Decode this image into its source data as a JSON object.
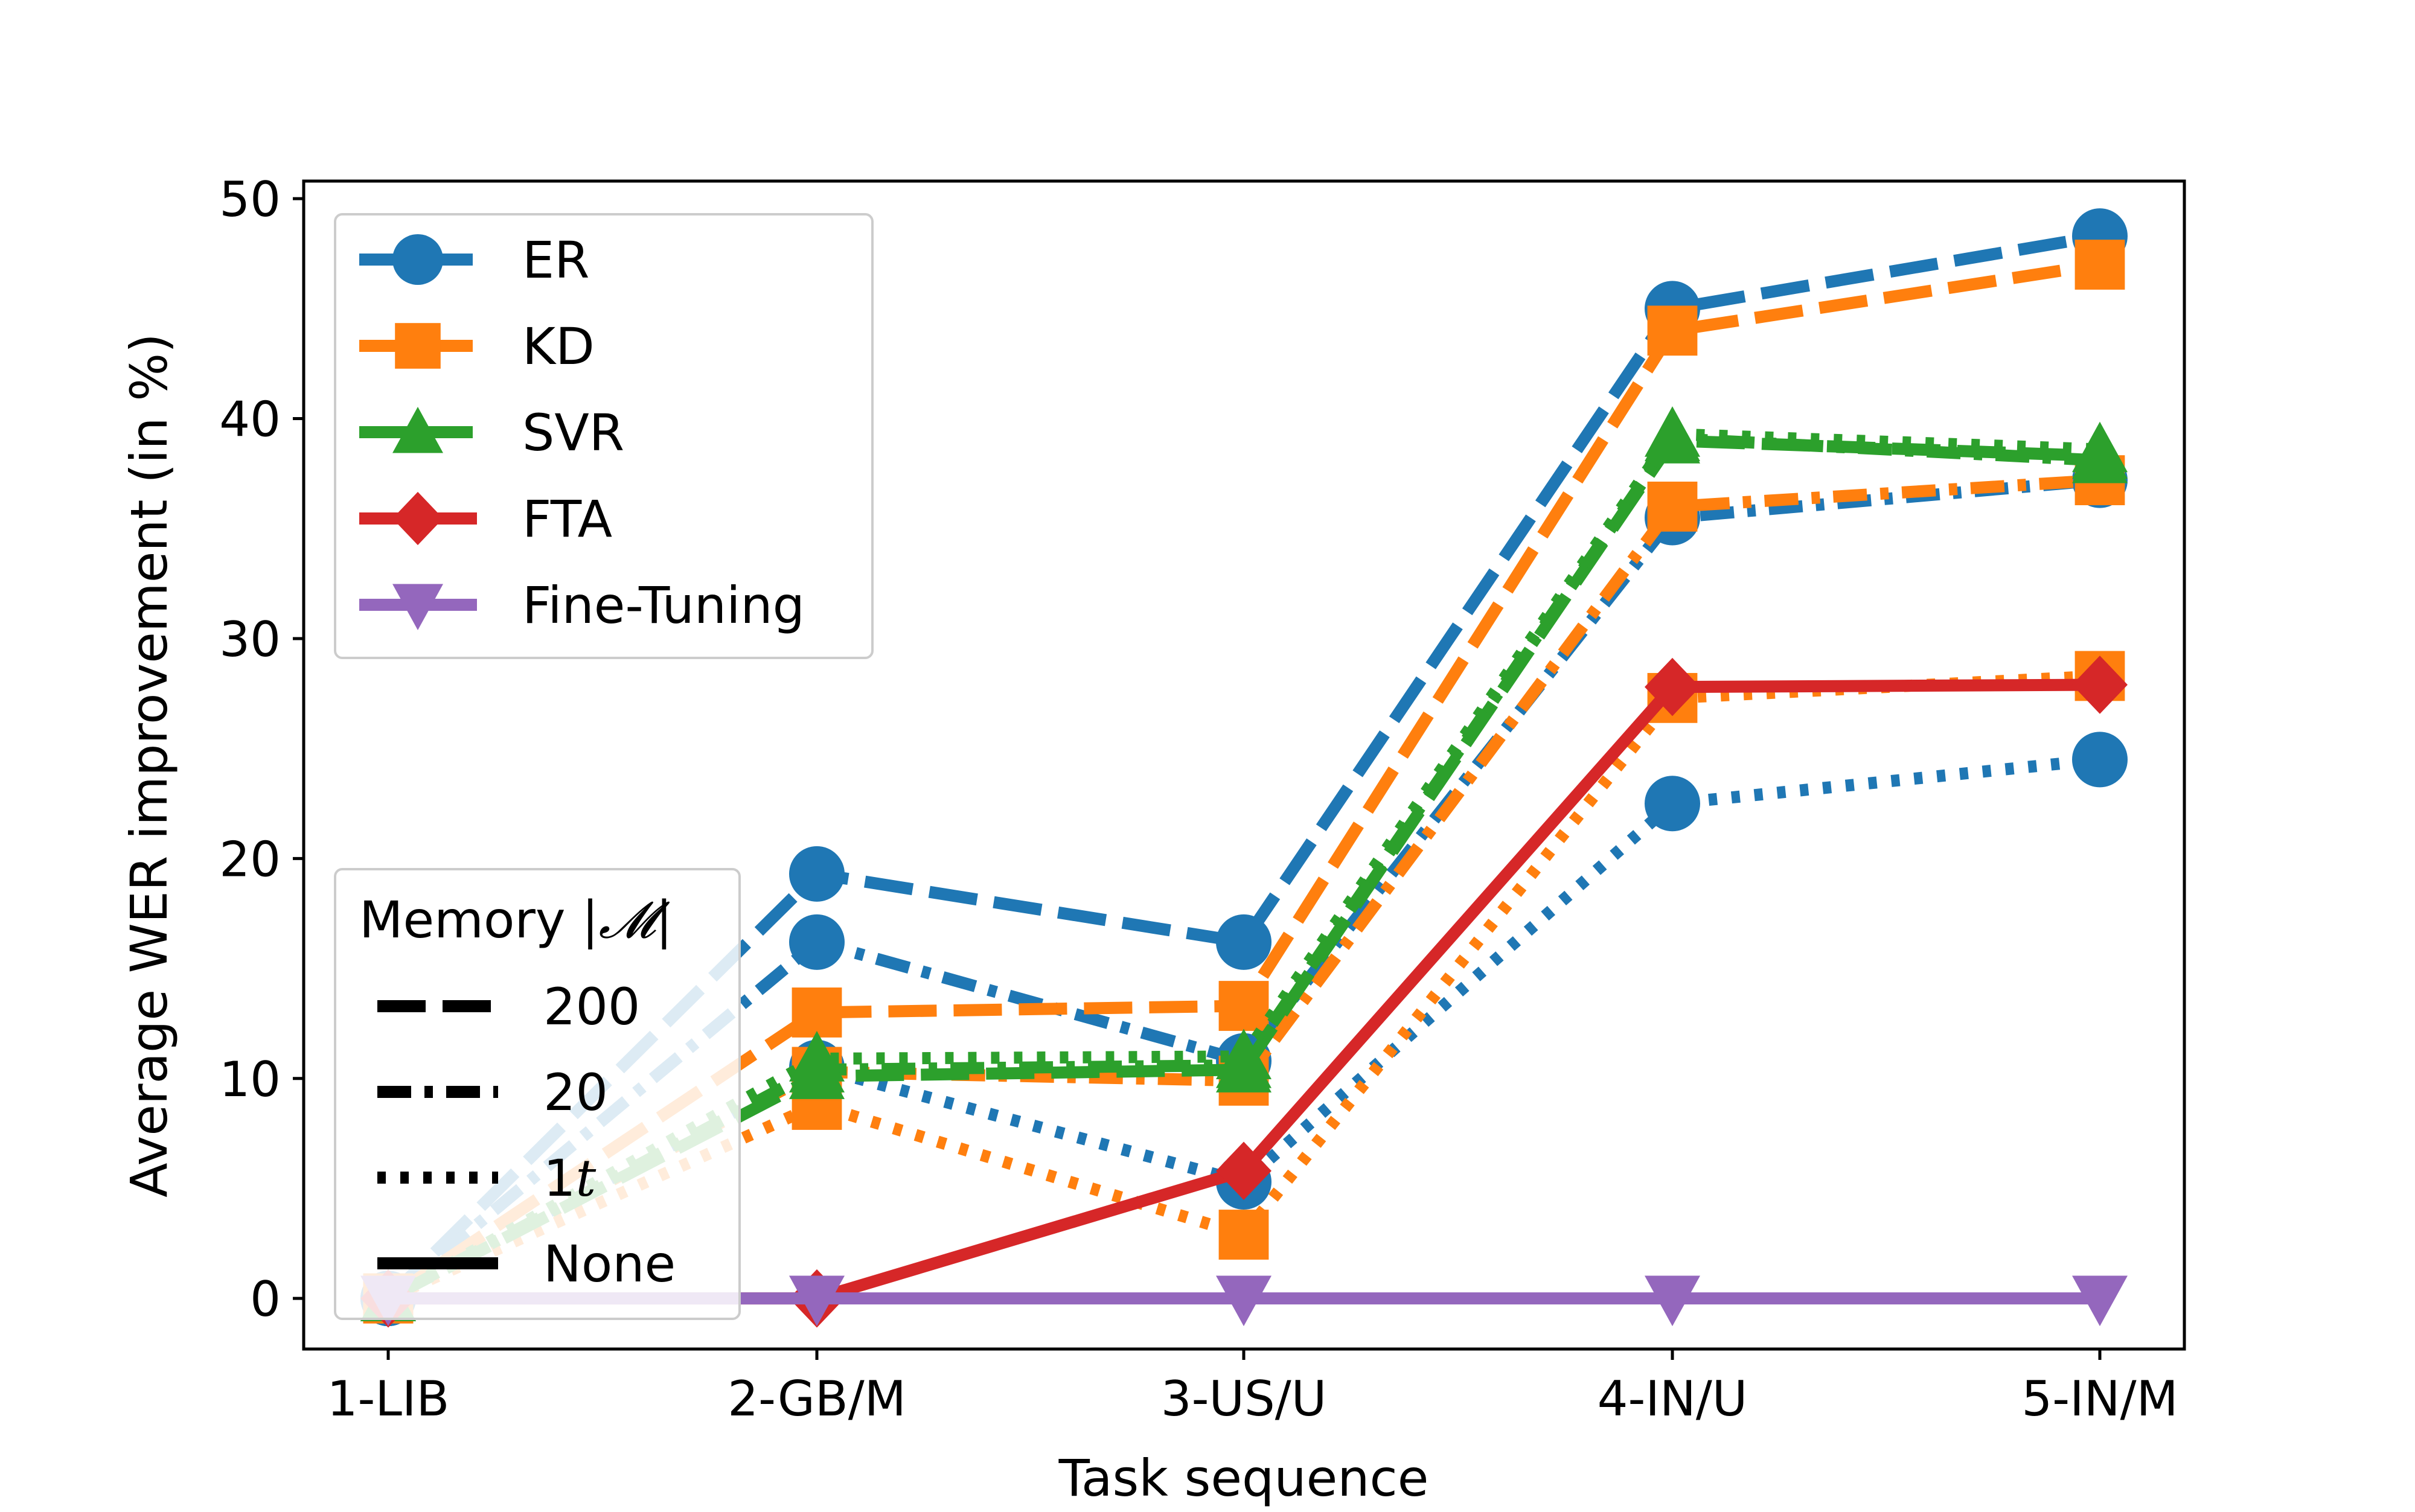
{
  "chart_data": {
    "type": "line",
    "title": "",
    "xlabel": "Task sequence",
    "ylabel": "Average WER improvement (in %)",
    "categories": [
      "1-LIB",
      "2-GB/M",
      "3-US/U",
      "4-IN/U",
      "5-IN/M"
    ],
    "ylim": [
      -2.3,
      50.8
    ],
    "yticks": [
      0,
      10,
      20,
      30,
      40,
      50
    ],
    "grid": false,
    "methods": [
      {
        "name": "ER",
        "color": "#1f77b4",
        "marker": "circle"
      },
      {
        "name": "KD",
        "color": "#ff7f0e",
        "marker": "square"
      },
      {
        "name": "SVR",
        "color": "#2ca02c",
        "marker": "triangle-up"
      },
      {
        "name": "FTA",
        "color": "#d62728",
        "marker": "diamond"
      },
      {
        "name": "Fine-Tuning",
        "color": "#9467bd",
        "marker": "triangle-down"
      }
    ],
    "memory_legend": {
      "title_prefix": "Memory ",
      "title_symbol": "|𝓜|",
      "entries": [
        {
          "label": "200",
          "style": "dashed"
        },
        {
          "label": "20",
          "style": "dashdot"
        },
        {
          "label_main": "1",
          "label_italic": "t",
          "style": "dotted"
        },
        {
          "label": "None",
          "style": "solid"
        }
      ]
    },
    "series": [
      {
        "name": "ER",
        "memory": "200",
        "style": "dashed",
        "color": "#1f77b4",
        "marker": "circle",
        "values": [
          0,
          19.3,
          16.2,
          45.0,
          48.3
        ]
      },
      {
        "name": "ER",
        "memory": "20",
        "style": "dashdot",
        "color": "#1f77b4",
        "marker": "circle",
        "values": [
          0,
          16.2,
          10.8,
          35.5,
          37.2
        ]
      },
      {
        "name": "ER",
        "memory": "1t",
        "style": "dotted",
        "color": "#1f77b4",
        "marker": "circle",
        "values": [
          0,
          10.5,
          5.3,
          22.5,
          24.5
        ]
      },
      {
        "name": "KD",
        "memory": "200",
        "style": "dashed",
        "color": "#ff7f0e",
        "marker": "square",
        "values": [
          0,
          13.0,
          13.3,
          44.0,
          47.0
        ]
      },
      {
        "name": "KD",
        "memory": "20",
        "style": "dashdot",
        "color": "#ff7f0e",
        "marker": "square",
        "values": [
          0,
          10.3,
          9.9,
          36.0,
          37.2
        ]
      },
      {
        "name": "KD",
        "memory": "1t",
        "style": "dotted",
        "color": "#ff7f0e",
        "marker": "square",
        "values": [
          0,
          8.8,
          2.9,
          27.3,
          28.3
        ]
      },
      {
        "name": "SVR",
        "memory": "200",
        "style": "dashed",
        "color": "#2ca02c",
        "marker": "triangle-up",
        "values": [
          0,
          10.1,
          10.4,
          39.0,
          38.3
        ]
      },
      {
        "name": "SVR",
        "memory": "20",
        "style": "dashdot",
        "color": "#2ca02c",
        "marker": "triangle-up",
        "values": [
          0,
          10.4,
          10.6,
          39.1,
          38.1
        ]
      },
      {
        "name": "SVR",
        "memory": "1t",
        "style": "dotted",
        "color": "#2ca02c",
        "marker": "triangle-up",
        "values": [
          0,
          10.9,
          11.0,
          39.3,
          38.6
        ]
      },
      {
        "name": "FTA",
        "memory": "None",
        "style": "solid",
        "color": "#d62728",
        "marker": "diamond",
        "values": [
          0,
          0,
          5.8,
          27.8,
          27.9
        ]
      },
      {
        "name": "Fine-Tuning",
        "memory": "None",
        "style": "solid",
        "color": "#9467bd",
        "marker": "triangle-down",
        "values": [
          0,
          0,
          0,
          0,
          0
        ]
      }
    ]
  }
}
